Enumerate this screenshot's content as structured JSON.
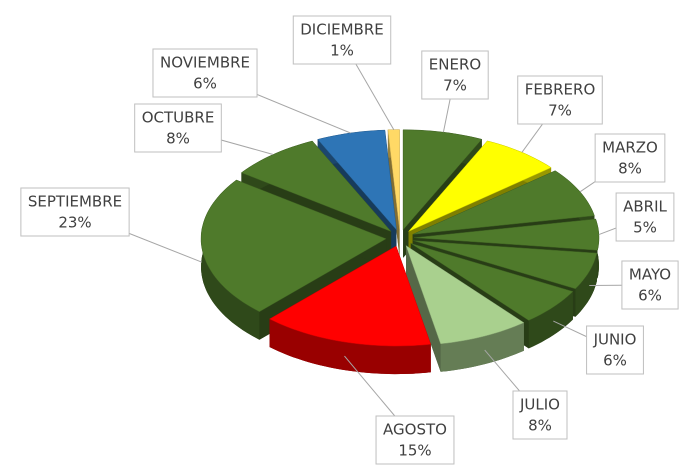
{
  "chart_data": {
    "type": "pie3d",
    "categories": [
      "ENERO",
      "FEBRERO",
      "MARZO",
      "ABRIL",
      "MAYO",
      "JUNIO",
      "JULIO",
      "AGOSTO",
      "SEPTIEMBRE",
      "OCTUBRE",
      "NOVIEMBRE",
      "DICIEMBRE"
    ],
    "values": [
      7,
      7,
      8,
      5,
      6,
      6,
      8,
      15,
      23,
      8,
      6,
      1
    ],
    "value_labels": [
      "7%",
      "7%",
      "8%",
      "5%",
      "6%",
      "6%",
      "8%",
      "15%",
      "23%",
      "8%",
      "6%",
      "1%"
    ],
    "colors": [
      "#4f7a2b",
      "#ffff00",
      "#4f7a2b",
      "#4f7a2b",
      "#4f7a2b",
      "#4f7a2b",
      "#a9d08e",
      "#ff0000",
      "#4f7a2b",
      "#4f7a2b",
      "#2e75b6",
      "#ffd966"
    ]
  }
}
